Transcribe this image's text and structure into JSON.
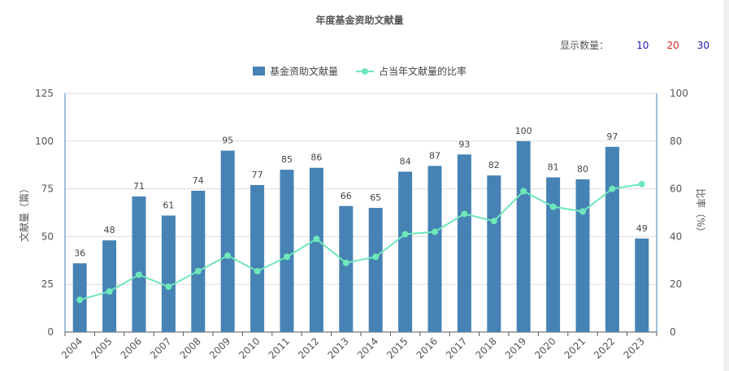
{
  "title": "年度基金资助文献量",
  "count_selector": {
    "label": "显示数量：",
    "options": [
      {
        "label": "10",
        "color": "#1a1aaa"
      },
      {
        "label": "20",
        "color": "#d9261c"
      },
      {
        "label": "30",
        "color": "#1a1aaa"
      }
    ]
  },
  "colors": {
    "bar": "#4682b4",
    "line": "#6ee8b8"
  },
  "chart_data": {
    "type": "bar",
    "categories": [
      "2004",
      "2005",
      "2006",
      "2007",
      "2008",
      "2009",
      "2010",
      "2011",
      "2012",
      "2013",
      "2014",
      "2015",
      "2016",
      "2017",
      "2018",
      "2019",
      "2020",
      "2021",
      "2022",
      "2023"
    ],
    "series": [
      {
        "name": "基金资助文献量",
        "type": "bar",
        "axis": "left",
        "values": [
          36,
          48,
          71,
          61,
          74,
          95,
          77,
          85,
          86,
          66,
          65,
          84,
          87,
          93,
          82,
          100,
          81,
          80,
          97,
          49
        ]
      },
      {
        "name": "占当年文献量的比率",
        "type": "line",
        "axis": "right",
        "values": [
          13.5,
          17,
          24,
          19,
          25.5,
          32,
          25.5,
          31.5,
          39,
          29,
          31.5,
          41,
          42,
          49.5,
          46.5,
          59,
          52.5,
          50.5,
          60,
          62
        ]
      }
    ],
    "ylabel": "文献量（篇）",
    "y2label": "比率（%）",
    "ylim": [
      0,
      125
    ],
    "y2lim": [
      0,
      100
    ],
    "yticks": [
      0,
      25,
      50,
      75,
      100,
      125
    ],
    "y2ticks": [
      0,
      20,
      40,
      60,
      80,
      100
    ],
    "grid": true,
    "legend": "top-center"
  }
}
